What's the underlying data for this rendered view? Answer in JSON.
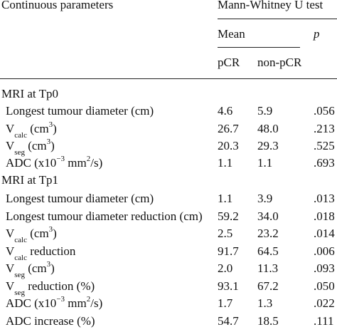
{
  "header": {
    "col_params": "Continuous parameters",
    "col_test": "Mann-Whitney U test",
    "mean": "Mean",
    "p": "p",
    "pcr": "pCR",
    "nonpcr": "non-pCR"
  },
  "sections": [
    {
      "title": "MRI at Tp0",
      "rows": [
        {
          "label": "Longest tumour diameter (cm)",
          "pcr": "4.6",
          "nonpcr": "5.9",
          "p": ".056"
        },
        {
          "label_main": "V",
          "label_sub": "calc",
          "label_rest": " (cm",
          "label_sup": "3",
          "label_end": ")",
          "pcr": "26.7",
          "nonpcr": "48.0",
          "p": ".213"
        },
        {
          "label_main": "V",
          "label_sub": "seg",
          "label_rest": " (cm",
          "label_sup": "3",
          "label_end": ")",
          "pcr": "20.3",
          "nonpcr": "29.3",
          "p": ".525"
        },
        {
          "label_main": "ADC (x10",
          "label_sup": "−3",
          "label_rest": " mm",
          "label_sup2": "2",
          "label_end": "/s)",
          "pcr": "1.1",
          "nonpcr": "1.1",
          "p": ".693"
        }
      ]
    },
    {
      "title": "MRI at Tp1",
      "rows": [
        {
          "label": "Longest tumour diameter (cm)",
          "pcr": "1.1",
          "nonpcr": "3.9",
          "p": ".013"
        },
        {
          "label": "Longest tumour diameter reduction (cm)",
          "pcr": "59.2",
          "nonpcr": "34.0",
          "p": ".018"
        },
        {
          "label_main": "V",
          "label_sub": "calc",
          "label_rest": " (cm",
          "label_sup": "3",
          "label_end": ")",
          "pcr": "2.5",
          "nonpcr": "23.2",
          "p": ".014"
        },
        {
          "label_main": "V",
          "label_sub": "calc",
          "label_rest": " reduction",
          "pcr": "91.7",
          "nonpcr": "64.5",
          "p": ".006"
        },
        {
          "label_main": "V",
          "label_sub": "seg",
          "label_rest": " (cm",
          "label_sup": "3",
          "label_end": ")",
          "pcr": "2.0",
          "nonpcr": "11.3",
          "p": ".093"
        },
        {
          "label_main": "V",
          "label_sub": "seg",
          "label_rest": " reduction (%)",
          "pcr": "93.1",
          "nonpcr": "67.2",
          "p": ".050"
        },
        {
          "label_main": "ADC (x10",
          "label_sup": "−3",
          "label_rest": " mm",
          "label_sup2": "2",
          "label_end": "/s)",
          "pcr": "1.7",
          "nonpcr": "1.3",
          "p": ".022"
        },
        {
          "label": "ADC increase (%)",
          "pcr": "54.7",
          "nonpcr": "18.5",
          "p": ".111"
        }
      ]
    }
  ]
}
